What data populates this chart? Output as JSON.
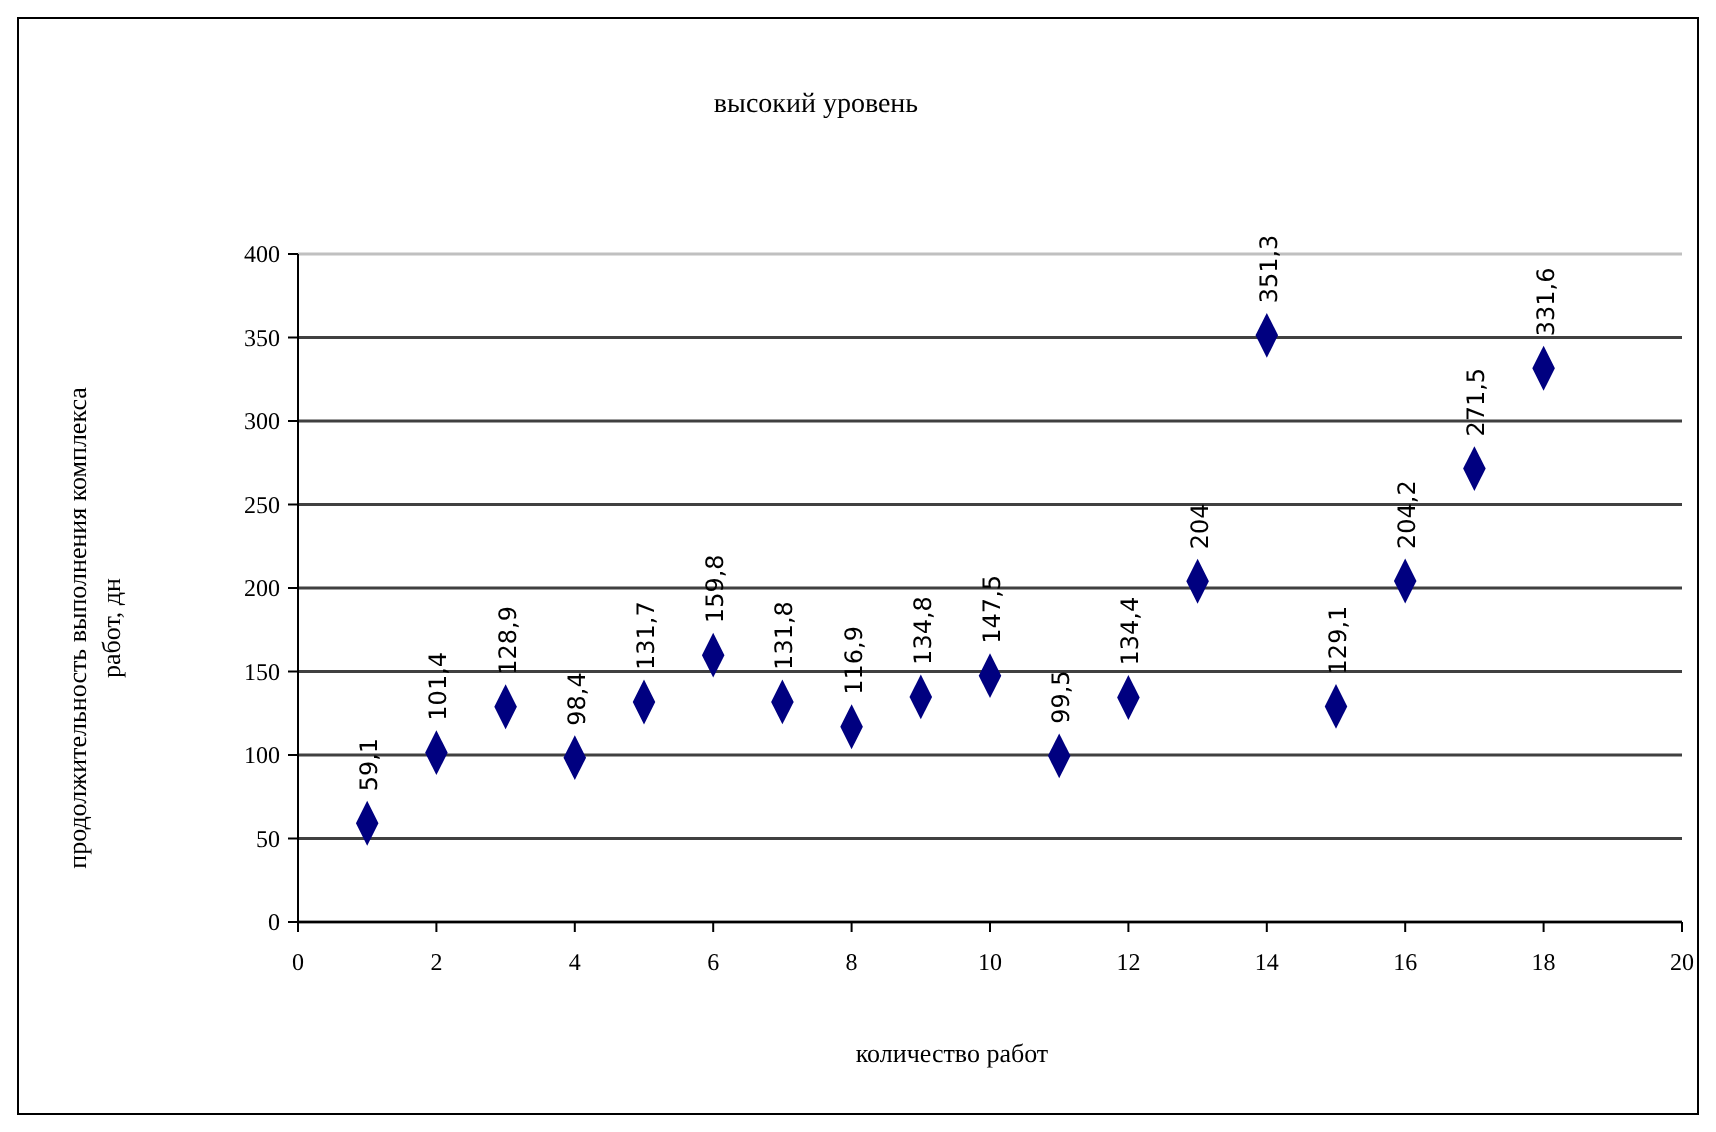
{
  "chart_data": {
    "type": "scatter",
    "title": "высокий уровень",
    "xlabel": "количество работ",
    "ylabel": "продолжительность выполнения комплекса\nработ, дн",
    "x": [
      1,
      2,
      3,
      4,
      5,
      6,
      7,
      8,
      9,
      10,
      11,
      12,
      13,
      14,
      15,
      16,
      17,
      18
    ],
    "values": [
      59.1,
      101.4,
      128.9,
      98.4,
      131.7,
      159.8,
      131.8,
      116.9,
      134.8,
      147.5,
      99.5,
      134.4,
      204,
      351.3,
      129.1,
      204.2,
      271.5,
      331.6
    ],
    "value_labels": [
      "59,1",
      "101,4",
      "128,9",
      "98,4",
      "131,7",
      "159,8",
      "131,8",
      "116,9",
      "134,8",
      "147,5",
      "99,5",
      "134,4",
      "204",
      "351,3",
      "129,1",
      "204,2",
      "271,5",
      "331,6"
    ],
    "color": "#000080",
    "marker": "diamond",
    "xlim": [
      0,
      20
    ],
    "xticks": [
      0,
      2,
      4,
      6,
      8,
      10,
      12,
      14,
      16,
      18,
      20
    ],
    "ylim": [
      0,
      400
    ],
    "yticks": [
      0,
      50,
      100,
      150,
      200,
      250,
      300,
      350,
      400
    ],
    "grid": "y"
  }
}
